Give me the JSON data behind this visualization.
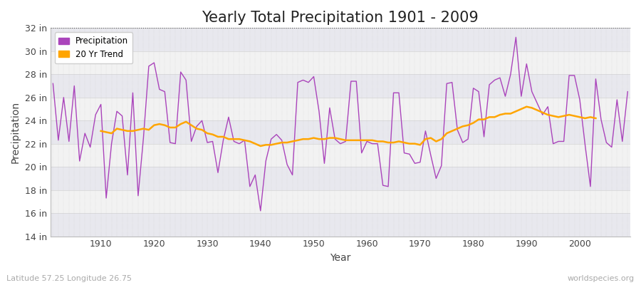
{
  "title": "Yearly Total Precipitation 1901 - 2009",
  "xlabel": "Year",
  "ylabel": "Precipitation",
  "subtitle_left": "Latitude 57.25 Longitude 26.75",
  "subtitle_right": "worldspecies.org",
  "years": [
    1901,
    1902,
    1903,
    1904,
    1905,
    1906,
    1907,
    1908,
    1909,
    1910,
    1911,
    1912,
    1913,
    1914,
    1915,
    1916,
    1917,
    1918,
    1919,
    1920,
    1921,
    1922,
    1923,
    1924,
    1925,
    1926,
    1927,
    1928,
    1929,
    1930,
    1931,
    1932,
    1933,
    1934,
    1935,
    1936,
    1937,
    1938,
    1939,
    1940,
    1941,
    1942,
    1943,
    1944,
    1945,
    1946,
    1947,
    1948,
    1949,
    1950,
    1951,
    1952,
    1953,
    1954,
    1955,
    1956,
    1957,
    1958,
    1959,
    1960,
    1961,
    1962,
    1963,
    1964,
    1965,
    1966,
    1967,
    1968,
    1969,
    1970,
    1971,
    1972,
    1973,
    1974,
    1975,
    1976,
    1977,
    1978,
    1979,
    1980,
    1981,
    1982,
    1983,
    1984,
    1985,
    1986,
    1987,
    1988,
    1989,
    1990,
    1991,
    1992,
    1993,
    1994,
    1995,
    1996,
    1997,
    1998,
    1999,
    2000,
    2001,
    2002,
    2003,
    2004,
    2005,
    2006,
    2007,
    2008,
    2009
  ],
  "precip": [
    27.2,
    22.3,
    26.0,
    22.2,
    27.0,
    20.5,
    22.9,
    21.7,
    24.5,
    25.4,
    17.3,
    22.0,
    24.8,
    24.4,
    19.3,
    26.4,
    17.5,
    22.5,
    28.7,
    29.0,
    26.7,
    26.5,
    22.1,
    22.0,
    28.2,
    27.5,
    22.2,
    23.5,
    24.0,
    22.1,
    22.2,
    19.5,
    22.3,
    24.3,
    22.2,
    22.0,
    22.3,
    18.3,
    19.3,
    16.2,
    20.5,
    22.4,
    22.8,
    22.3,
    20.2,
    19.3,
    27.3,
    27.5,
    27.3,
    27.8,
    24.8,
    20.3,
    25.1,
    22.4,
    22.0,
    22.2,
    27.4,
    27.4,
    21.2,
    22.2,
    22.0,
    22.0,
    18.4,
    18.3,
    26.4,
    26.4,
    21.2,
    21.1,
    20.3,
    20.4,
    23.1,
    21.0,
    19.0,
    20.1,
    27.2,
    27.3,
    23.2,
    22.1,
    22.4,
    26.8,
    26.5,
    22.6,
    27.1,
    27.5,
    27.7,
    26.1,
    28.0,
    31.2,
    26.1,
    28.9,
    26.5,
    25.5,
    24.5,
    25.2,
    22.0,
    22.2,
    22.2,
    27.9,
    27.9,
    25.8,
    21.9,
    18.3,
    27.6,
    24.1,
    22.1,
    21.7,
    25.8,
    22.2,
    26.5
  ],
  "trend": [
    null,
    null,
    null,
    null,
    null,
    null,
    null,
    null,
    null,
    23.1,
    23.0,
    22.9,
    23.3,
    23.2,
    23.1,
    23.1,
    23.2,
    23.3,
    23.2,
    23.6,
    23.7,
    23.6,
    23.4,
    23.4,
    23.7,
    23.9,
    23.6,
    23.3,
    23.2,
    22.9,
    22.8,
    22.6,
    22.6,
    22.4,
    22.4,
    22.4,
    22.3,
    22.2,
    22.0,
    21.8,
    21.9,
    21.9,
    22.0,
    22.1,
    22.1,
    22.2,
    22.3,
    22.4,
    22.4,
    22.5,
    22.4,
    22.4,
    22.5,
    22.5,
    22.4,
    22.3,
    22.3,
    22.3,
    22.3,
    22.3,
    22.3,
    22.2,
    22.2,
    22.1,
    22.1,
    22.2,
    22.1,
    22.0,
    22.0,
    21.9,
    22.4,
    22.5,
    22.2,
    22.4,
    22.9,
    23.1,
    23.3,
    23.5,
    23.6,
    23.8,
    24.1,
    24.1,
    24.3,
    24.3,
    24.5,
    24.6,
    24.6,
    24.8,
    25.0,
    25.2,
    25.1,
    24.9,
    24.7,
    24.5,
    24.4,
    24.3,
    24.4,
    24.5,
    24.4,
    24.3,
    24.2,
    24.3,
    24.2
  ],
  "precip_color": "#AA44BB",
  "trend_color": "#FFA500",
  "bg_color": "#FFFFFF",
  "plot_bg_light": "#EEEEEE",
  "plot_bg_dark": "#E0E0E8",
  "grid_color": "#CCCCCC",
  "ylim": [
    14,
    32
  ],
  "yticks": [
    14,
    16,
    18,
    20,
    22,
    24,
    26,
    28,
    30,
    32
  ],
  "ytick_labels": [
    "14 in",
    "16 in",
    "18 in",
    "20 in",
    "22 in",
    "24 in",
    "26 in",
    "28 in",
    "30 in",
    "32 in"
  ],
  "xticks": [
    1910,
    1920,
    1930,
    1940,
    1950,
    1960,
    1970,
    1980,
    1990,
    2000
  ],
  "title_fontsize": 15,
  "axis_label_fontsize": 10,
  "tick_fontsize": 9,
  "legend_entries": [
    "Precipitation",
    "20 Yr Trend"
  ],
  "dotted_line_y": 32,
  "band_colors": [
    "#E8E8EE",
    "#F2F2F2"
  ]
}
